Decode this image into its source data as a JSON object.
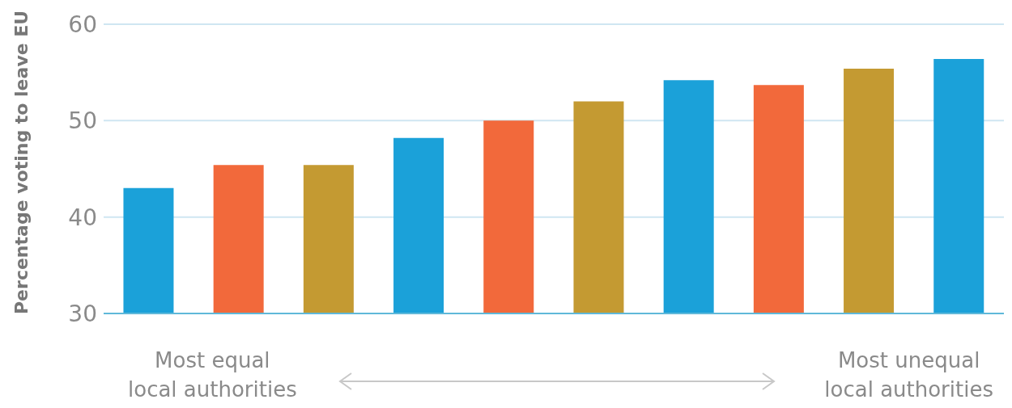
{
  "chart_data": {
    "type": "bar",
    "ylabel": "Percentage voting to leave EU",
    "categories": [
      null,
      null,
      null,
      null,
      null,
      null,
      null,
      null,
      null,
      null
    ],
    "values": [
      43.0,
      45.4,
      45.4,
      48.2,
      50.0,
      52.0,
      54.2,
      53.7,
      55.4,
      56.4
    ],
    "colors": [
      "#1ba1d9",
      "#f2693b",
      "#c49a32",
      "#1ba1d9",
      "#f2693b",
      "#c49a32",
      "#1ba1d9",
      "#f2693b",
      "#c49a32",
      "#1ba1d9"
    ],
    "ylim": [
      30,
      60
    ],
    "yticks": [
      30,
      40,
      50,
      60
    ],
    "grid": "y",
    "legend": false,
    "annotations": [
      "Most equal\nlocal authorities",
      "Most unequal\nlocal authorities"
    ]
  }
}
